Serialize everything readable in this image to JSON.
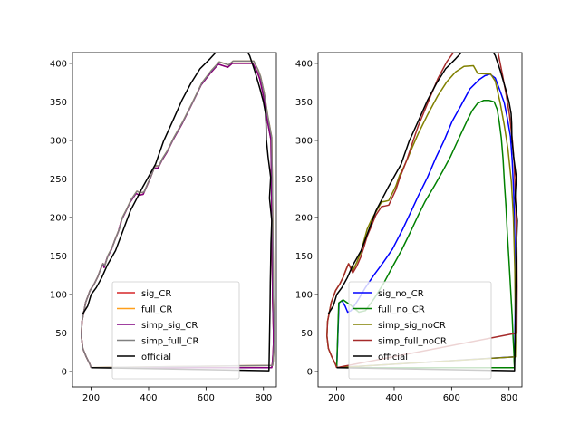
{
  "chart_data": [
    {
      "type": "line",
      "title": "",
      "xlabel": "",
      "ylabel": "",
      "xlim": [
        135,
        845
      ],
      "ylim": [
        -20,
        414
      ],
      "xticks": [
        200,
        400,
        600,
        800
      ],
      "yticks": [
        0,
        50,
        100,
        150,
        200,
        250,
        300,
        350,
        400
      ],
      "xtick_labels": [
        "200",
        "400",
        "600",
        "800"
      ],
      "ytick_labels": [
        "0",
        "50",
        "100",
        "150",
        "200",
        "250",
        "300",
        "350",
        "400"
      ],
      "grid": false,
      "legend_position": "lower-center",
      "series": [
        {
          "name": "sig_CR",
          "color": "#d62728",
          "x": [
            200,
            195,
            183,
            171,
            166,
            168,
            181,
            196,
            211,
            223,
            233,
            241,
            245,
            256,
            270,
            284,
            295,
            306,
            321,
            336,
            356,
            369,
            381,
            406,
            419,
            433,
            446,
            463,
            484,
            517,
            552,
            583,
            614,
            643,
            676,
            691,
            763,
            778,
            787,
            800,
            812,
            826,
            827,
            828,
            832,
            835,
            835,
            833,
            831,
            829,
            200
          ],
          "y": [
            5,
            10,
            19,
            30,
            46,
            65,
            90,
            105,
            114,
            123,
            133,
            140,
            135,
            148,
            158,
            172,
            182,
            197,
            208,
            220,
            231,
            229,
            230,
            251,
            264,
            264,
            274,
            284,
            300,
            322,
            348,
            372,
            387,
            399,
            395,
            400,
            400,
            389,
            380,
            358,
            329,
            301,
            270,
            246,
            92,
            51,
            36,
            21,
            11,
            5,
            5
          ]
        },
        {
          "name": "full_CR",
          "color": "#ff9f1a",
          "x": [
            200,
            195,
            183,
            171,
            166,
            168,
            181,
            196,
            211,
            223,
            233,
            241,
            248,
            259,
            273,
            287,
            298,
            309,
            324,
            339,
            359,
            372,
            384,
            409,
            422,
            436,
            449,
            466,
            487,
            520,
            555,
            586,
            617,
            646,
            679,
            694,
            766,
            781,
            790,
            803,
            815,
            829,
            830,
            831,
            835,
            838,
            838,
            836,
            834,
            832,
            200
          ],
          "y": [
            5,
            10,
            19,
            30,
            46,
            65,
            90,
            105,
            114,
            123,
            133,
            140,
            138,
            151,
            161,
            175,
            185,
            200,
            211,
            223,
            234,
            232,
            233,
            254,
            267,
            267,
            277,
            287,
            303,
            325,
            351,
            375,
            390,
            402,
            398,
            403,
            403,
            392,
            383,
            361,
            332,
            304,
            273,
            249,
            95,
            54,
            39,
            24,
            14,
            8,
            5
          ]
        },
        {
          "name": "simp_sig_CR",
          "color": "#800080",
          "x": [
            200,
            195,
            183,
            171,
            166,
            168,
            181,
            196,
            211,
            223,
            233,
            241,
            245,
            256,
            270,
            284,
            295,
            306,
            321,
            336,
            356,
            369,
            381,
            406,
            419,
            433,
            446,
            463,
            484,
            517,
            552,
            583,
            614,
            643,
            676,
            691,
            763,
            778,
            787,
            800,
            812,
            826,
            827,
            828,
            832,
            835,
            835,
            833,
            831,
            829,
            200
          ],
          "y": [
            5,
            10,
            19,
            30,
            46,
            65,
            90,
            105,
            114,
            123,
            133,
            140,
            135,
            148,
            158,
            172,
            182,
            197,
            208,
            220,
            231,
            229,
            230,
            251,
            264,
            264,
            274,
            284,
            300,
            322,
            348,
            372,
            387,
            399,
            395,
            400,
            400,
            389,
            380,
            358,
            329,
            301,
            270,
            246,
            92,
            51,
            36,
            21,
            11,
            5,
            5
          ]
        },
        {
          "name": "simp_full_CR",
          "color": "#808080",
          "x": [
            200,
            195,
            183,
            171,
            166,
            168,
            181,
            196,
            211,
            223,
            233,
            241,
            248,
            259,
            273,
            287,
            298,
            309,
            324,
            339,
            359,
            372,
            384,
            409,
            422,
            436,
            449,
            466,
            487,
            520,
            555,
            586,
            617,
            646,
            679,
            694,
            766,
            781,
            790,
            803,
            815,
            829,
            830,
            831,
            835,
            838,
            838,
            836,
            834,
            832,
            200
          ],
          "y": [
            5,
            10,
            19,
            30,
            46,
            65,
            90,
            105,
            114,
            123,
            133,
            140,
            138,
            151,
            161,
            175,
            185,
            200,
            211,
            223,
            234,
            232,
            233,
            254,
            267,
            267,
            277,
            287,
            303,
            325,
            351,
            375,
            390,
            402,
            398,
            403,
            403,
            392,
            383,
            361,
            332,
            304,
            273,
            249,
            95,
            54,
            39,
            24,
            14,
            8,
            5
          ]
        },
        {
          "name": "official",
          "color": "#000000",
          "x": [
            171,
            188,
            200,
            218,
            237,
            256,
            285,
            303,
            337,
            379,
            424,
            452,
            485,
            516,
            547,
            579,
            614,
            641,
            680,
            713,
            734,
            752,
            770,
            788,
            800,
            807,
            809,
            810,
            816,
            825,
            821,
            829,
            826,
            825,
            824,
            823,
            821,
            820,
            819,
            200
          ],
          "y": [
            75,
            85,
            100,
            109,
            122,
            138,
            157,
            175,
            209,
            239,
            269,
            299,
            326,
            352,
            374,
            393,
            406,
            417,
            422,
            424,
            421,
            410,
            390,
            367,
            350,
            335,
            322,
            302,
            279,
            252,
            225,
            196,
            166,
            140,
            115,
            83,
            40,
            19,
            1,
            5
          ]
        }
      ]
    },
    {
      "type": "line",
      "title": "",
      "xlabel": "",
      "ylabel": "",
      "xlim": [
        135,
        845
      ],
      "ylim": [
        -20,
        414
      ],
      "xticks": [
        200,
        400,
        600,
        800
      ],
      "yticks": [
        0,
        50,
        100,
        150,
        200,
        250,
        300,
        350,
        400
      ],
      "xtick_labels": [
        "200",
        "400",
        "600",
        "800"
      ],
      "ytick_labels": [
        "0",
        "50",
        "100",
        "150",
        "200",
        "250",
        "300",
        "350",
        "400"
      ],
      "grid": false,
      "legend_position": "lower-center",
      "series": [
        {
          "name": "sig_no_CR",
          "color": "#0000ff",
          "x": [
            200,
            208,
            218,
            229,
            238,
            250,
            276,
            300,
            329,
            361,
            394,
            430,
            463,
            484,
            516,
            546,
            574,
            602,
            632,
            664,
            696,
            716,
            734,
            752,
            766,
            783,
            794,
            805,
            811,
            816,
            820,
            822,
            821,
            820,
            819,
            200
          ],
          "y": [
            5,
            89,
            92,
            85,
            77,
            79,
            94,
            109,
            125,
            141,
            159,
            185,
            211,
            228,
            252,
            278,
            300,
            325,
            345,
            367,
            379,
            384,
            386,
            381,
            367,
            349,
            329,
            305,
            274,
            234,
            170,
            103,
            64,
            40,
            19,
            5
          ]
        },
        {
          "name": "full_no_CR",
          "color": "#008000",
          "x": [
            200,
            207,
            222,
            249,
            277,
            300,
            331,
            364,
            394,
            425,
            455,
            484,
            508,
            540,
            570,
            596,
            618,
            638,
            657,
            672,
            690,
            712,
            730,
            748,
            759,
            766,
            773,
            779,
            784,
            789,
            794,
            800,
            806,
            811,
            814,
            817,
            818,
            819,
            200
          ],
          "y": [
            5,
            89,
            93,
            86,
            77,
            79,
            95,
            115,
            136,
            157,
            180,
            203,
            221,
            241,
            261,
            279,
            297,
            313,
            328,
            339,
            348,
            352,
            352,
            350,
            340,
            323,
            303,
            276,
            243,
            215,
            180,
            143,
            104,
            71,
            44,
            24,
            11,
            5,
            5
          ]
        },
        {
          "name": "simp_sig_noCR",
          "color": "#808000",
          "x": [
            200,
            195,
            183,
            171,
            166,
            168,
            181,
            196,
            211,
            223,
            233,
            241,
            256,
            270,
            284,
            295,
            306,
            321,
            336,
            356,
            369,
            381,
            406,
            419,
            433,
            446,
            463,
            484,
            517,
            552,
            583,
            614,
            643,
            676,
            691,
            736,
            752,
            769,
            783,
            796,
            808,
            815,
            820,
            822,
            823,
            822,
            200
          ],
          "y": [
            5,
            10,
            19,
            30,
            46,
            65,
            90,
            105,
            114,
            123,
            133,
            140,
            131,
            142,
            155,
            170,
            185,
            197,
            207,
            220,
            221,
            222,
            241,
            255,
            265,
            276,
            291,
            309,
            334,
            358,
            376,
            389,
            396,
            397,
            387,
            386,
            377,
            349,
            320,
            289,
            246,
            201,
            132,
            73,
            39,
            19,
            5
          ]
        },
        {
          "name": "simp_full_noCR",
          "color": "#a52a2a",
          "x": [
            200,
            195,
            183,
            171,
            166,
            168,
            181,
            196,
            211,
            223,
            233,
            241,
            256,
            270,
            284,
            295,
            306,
            321,
            336,
            356,
            369,
            381,
            406,
            419,
            433,
            446,
            463,
            484,
            517,
            552,
            583,
            614,
            643,
            676,
            745,
            757,
            765,
            777,
            789,
            801,
            812,
            818,
            823,
            827,
            828,
            827,
            200
          ],
          "y": [
            5,
            10,
            19,
            30,
            46,
            65,
            90,
            105,
            114,
            123,
            133,
            140,
            128,
            137,
            149,
            162,
            176,
            189,
            203,
            214,
            215,
            216,
            236,
            251,
            264,
            277,
            296,
            319,
            349,
            380,
            402,
            418,
            430,
            432,
            430,
            421,
            408,
            385,
            361,
            334,
            299,
            270,
            220,
            160,
            110,
            50,
            5
          ]
        },
        {
          "name": "official",
          "color": "#000000",
          "x": [
            171,
            188,
            200,
            218,
            237,
            256,
            285,
            303,
            337,
            379,
            424,
            452,
            485,
            516,
            547,
            579,
            614,
            641,
            680,
            713,
            734,
            752,
            770,
            788,
            800,
            807,
            809,
            810,
            816,
            825,
            821,
            829,
            826,
            825,
            824,
            823,
            821,
            820,
            819,
            200
          ],
          "y": [
            75,
            85,
            100,
            109,
            122,
            138,
            157,
            175,
            209,
            239,
            269,
            299,
            326,
            352,
            374,
            393,
            406,
            417,
            422,
            424,
            421,
            410,
            390,
            367,
            350,
            335,
            322,
            302,
            279,
            252,
            225,
            196,
            166,
            140,
            115,
            83,
            40,
            19,
            1,
            5
          ]
        }
      ]
    }
  ]
}
